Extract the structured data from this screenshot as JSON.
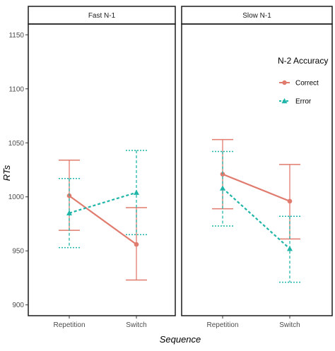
{
  "chart_data": {
    "type": "line",
    "xlabel": "Sequence",
    "ylabel": "RTs",
    "ylim": [
      890,
      1160
    ],
    "y_ticks": [
      900,
      950,
      1000,
      1050,
      1100,
      1150
    ],
    "categories": [
      "Repetition",
      "Switch"
    ],
    "legend": {
      "title": "N-2 Accuracy",
      "position": "top-right",
      "entries": [
        "Correct",
        "Error"
      ]
    },
    "grid": false,
    "colors": {
      "Correct": "#e07b6e",
      "Error": "#1fb5a8"
    },
    "facets": [
      {
        "label": "Fast N-1",
        "series": [
          {
            "name": "Correct",
            "values": [
              1001,
              956
            ],
            "lower": [
              969,
              923
            ],
            "upper": [
              1034,
              990
            ]
          },
          {
            "name": "Error",
            "values": [
              985,
              1004
            ],
            "lower": [
              953,
              965
            ],
            "upper": [
              1017,
              1043
            ]
          }
        ]
      },
      {
        "label": "Slow N-1",
        "series": [
          {
            "name": "Correct",
            "values": [
              1021,
              996
            ],
            "lower": [
              989,
              961
            ],
            "upper": [
              1053,
              1030
            ]
          },
          {
            "name": "Error",
            "values": [
              1008,
              952
            ],
            "lower": [
              973,
              921
            ],
            "upper": [
              1042,
              982
            ]
          }
        ]
      }
    ]
  }
}
